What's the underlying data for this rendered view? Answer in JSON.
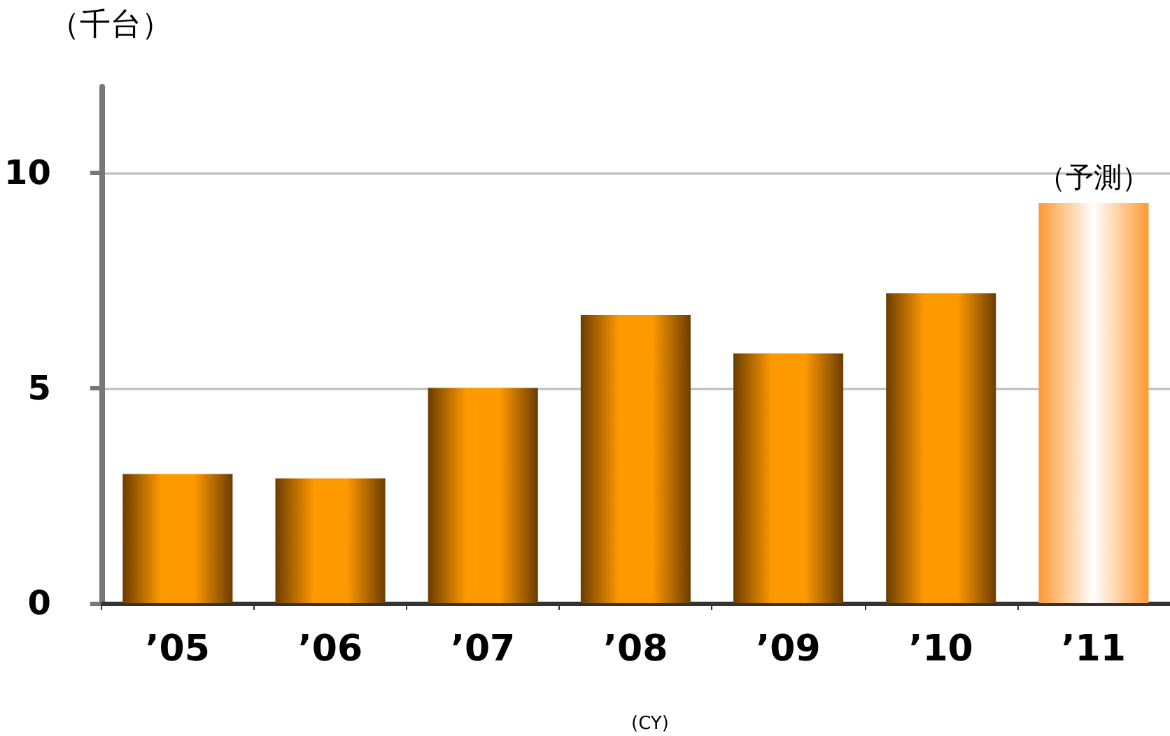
{
  "chart_data": {
    "type": "bar",
    "ylabel": "（千台）",
    "xlabel": "(CY)",
    "categories": [
      "’05",
      "’06",
      "’07",
      "’08",
      "’09",
      "’10",
      "’11"
    ],
    "values": [
      3.0,
      2.9,
      5.0,
      6.7,
      5.8,
      7.2,
      9.3
    ],
    "colors": [
      "#ff9900",
      "#ff9900",
      "#ff9900",
      "#ff9900",
      "#ff9900",
      "#ff9900",
      "#ff9933"
    ],
    "annotations": [
      {
        "text": "（予測）",
        "x": "’11",
        "y": 9.3
      }
    ],
    "ylim": [
      0,
      12
    ],
    "yticks": [
      0,
      5,
      10
    ],
    "grid": "y"
  }
}
